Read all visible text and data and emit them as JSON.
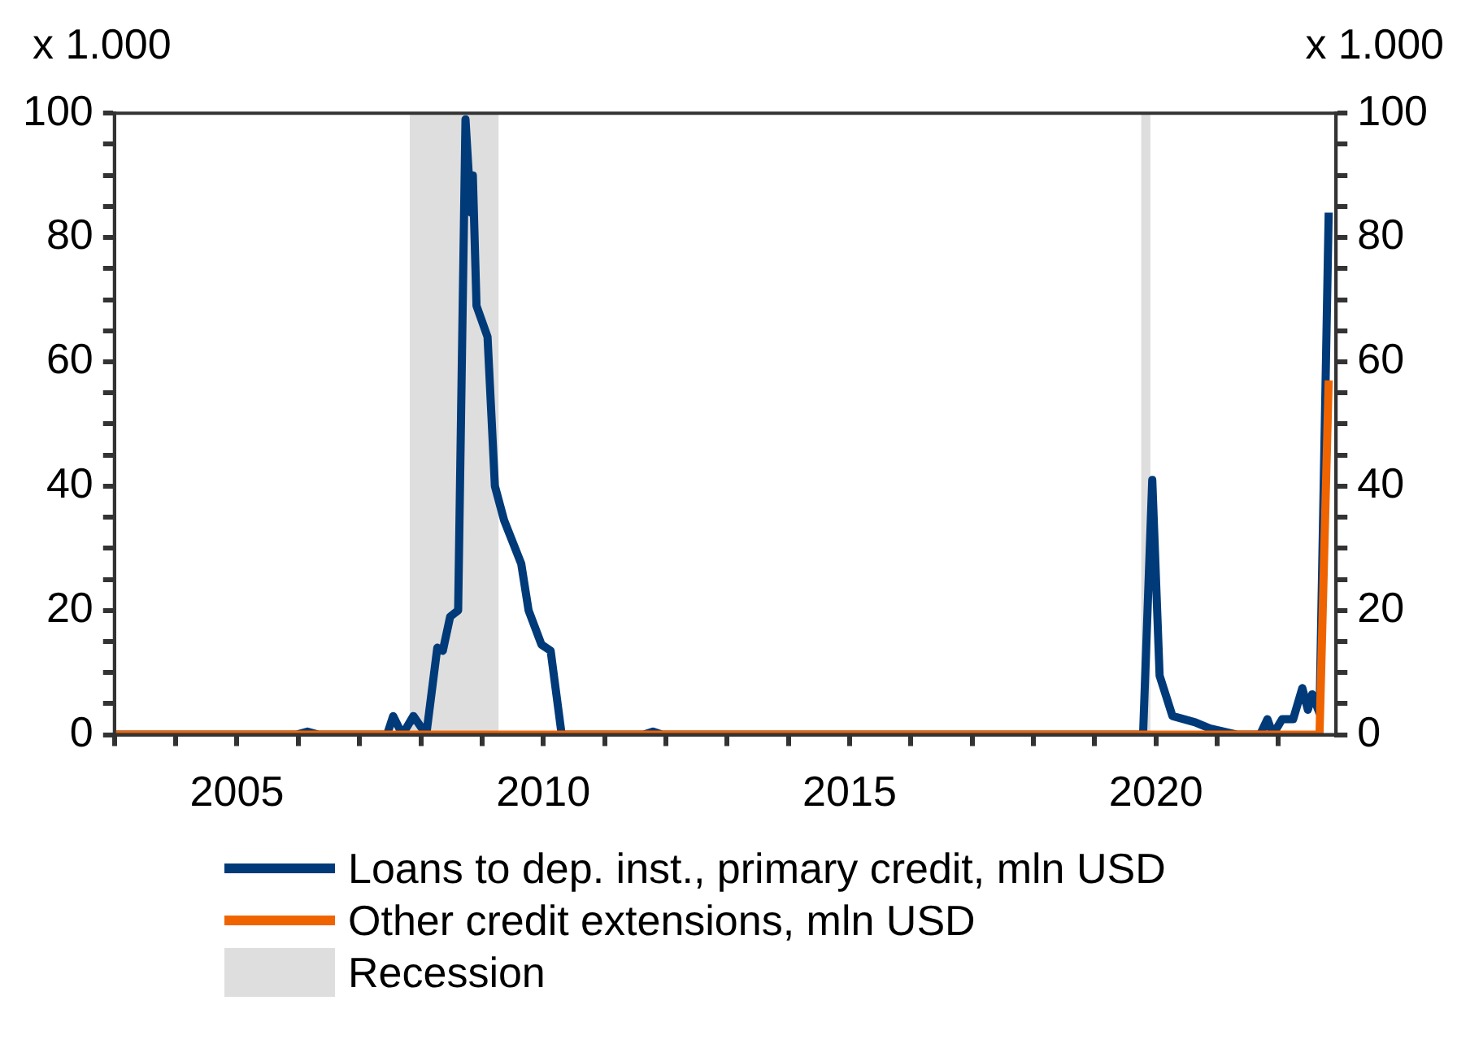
{
  "chart_data": {
    "type": "line",
    "ylabel": "x 1.000",
    "y2label": "x 1.000",
    "series": [
      {
        "name": "Loans to dep. inst., primary credit, mln USD",
        "color": "#003a78",
        "x": [
          2003.0,
          2005.97,
          2006.15,
          2006.33,
          2007.45,
          2007.55,
          2007.7,
          2007.88,
          2008.09,
          2008.27,
          2008.36,
          2008.48,
          2008.61,
          2008.73,
          2008.82,
          2008.85,
          2008.91,
          2009.09,
          2009.21,
          2009.36,
          2009.64,
          2009.76,
          2009.97,
          2010.12,
          2010.3,
          2011.64,
          2011.79,
          2011.94,
          2019.79,
          2019.94,
          2020.06,
          2020.27,
          2020.64,
          2020.88,
          2021.33,
          2021.7,
          2021.82,
          2021.91,
          2022.06,
          2022.24,
          2022.39,
          2022.48,
          2022.55,
          2022.67,
          2022.82
        ],
        "values": [
          0,
          0,
          0.5,
          0,
          0,
          3,
          0,
          3,
          0,
          14,
          13.5,
          19,
          20,
          99,
          84,
          90,
          69,
          64,
          40,
          34.5,
          27.5,
          20,
          14.5,
          13.5,
          0,
          0,
          0.5,
          0,
          0,
          41,
          9.5,
          3,
          2,
          1,
          0,
          0,
          2.5,
          0,
          2.5,
          2.5,
          7.5,
          4,
          6.5,
          3.5,
          84
        ]
      },
      {
        "name": "Other credit extensions, mln USD",
        "color": "#f06400",
        "x": [
          2003.0,
          2022.67,
          2022.82
        ],
        "values": [
          0,
          0,
          57
        ]
      }
    ],
    "xlim": [
      2003.0,
      2022.94
    ],
    "xticks": [
      {
        "value": 2003,
        "label": null
      },
      {
        "value": 2004,
        "label": null
      },
      2005,
      {
        "value": 2006,
        "label": null
      },
      {
        "value": 2007,
        "label": null
      },
      {
        "value": 2008,
        "label": null
      },
      {
        "value": 2009,
        "label": null
      },
      2010,
      {
        "value": 2011,
        "label": null
      },
      {
        "value": 2012,
        "label": null
      },
      {
        "value": 2013,
        "label": null
      },
      {
        "value": 2014,
        "label": null
      },
      2015,
      {
        "value": 2016,
        "label": null
      },
      {
        "value": 2017,
        "label": null
      },
      {
        "value": 2018,
        "label": null
      },
      {
        "value": 2019,
        "label": null
      },
      2020,
      {
        "value": 2021,
        "label": null
      },
      {
        "value": 2022,
        "label": null
      }
    ],
    "ylim": [
      0,
      100
    ],
    "yticks": [
      0,
      {
        "value": 5,
        "label": null
      },
      {
        "value": 10,
        "label": null
      },
      {
        "value": 15,
        "label": null
      },
      20,
      {
        "value": 25,
        "label": null
      },
      {
        "value": 30,
        "label": null
      },
      {
        "value": 35,
        "label": null
      },
      40,
      {
        "value": 45,
        "label": null
      },
      {
        "value": 50,
        "label": null
      },
      {
        "value": 55,
        "label": null
      },
      60,
      {
        "value": 65,
        "label": null
      },
      {
        "value": 70,
        "label": null
      },
      {
        "value": 75,
        "label": null
      },
      80,
      {
        "value": 85,
        "label": null
      },
      {
        "value": 90,
        "label": null
      },
      {
        "value": 95,
        "label": null
      },
      100
    ],
    "y2lim": [
      0,
      100
    ],
    "y2ticks": [
      0,
      {
        "value": 5,
        "label": null
      },
      {
        "value": 10,
        "label": null
      },
      {
        "value": 15,
        "label": null
      },
      20,
      {
        "value": 25,
        "label": null
      },
      {
        "value": 30,
        "label": null
      },
      {
        "value": 35,
        "label": null
      },
      40,
      {
        "value": 45,
        "label": null
      },
      {
        "value": 50,
        "label": null
      },
      {
        "value": 55,
        "label": null
      },
      60,
      {
        "value": 65,
        "label": null
      },
      {
        "value": 70,
        "label": null
      },
      {
        "value": 75,
        "label": null
      },
      80,
      {
        "value": 85,
        "label": null
      },
      {
        "value": 90,
        "label": null
      },
      {
        "value": 95,
        "label": null
      },
      100
    ],
    "bands": [
      {
        "axis": "x",
        "from": 2007.82,
        "to": 2009.27,
        "label": "Recession",
        "color": "#dedede"
      },
      {
        "axis": "x",
        "from": 2019.76,
        "to": 2019.91,
        "color": "#dedede"
      }
    ],
    "grid": false,
    "legend": "bottom",
    "marker": "none",
    "line_style": "solid"
  }
}
